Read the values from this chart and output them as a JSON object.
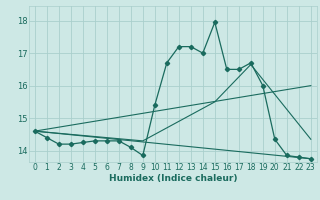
{
  "xlabel": "Humidex (Indice chaleur)",
  "xlim": [
    -0.5,
    23.5
  ],
  "ylim": [
    13.65,
    18.45
  ],
  "yticks": [
    14,
    15,
    16,
    17,
    18
  ],
  "xticks": [
    0,
    1,
    2,
    3,
    4,
    5,
    6,
    7,
    8,
    9,
    10,
    11,
    12,
    13,
    14,
    15,
    16,
    17,
    18,
    19,
    20,
    21,
    22,
    23
  ],
  "bg_color": "#cde8e5",
  "grid_color": "#aacfcc",
  "line_color": "#1a6b5e",
  "main_line": {
    "x": [
      0,
      1,
      2,
      3,
      4,
      5,
      6,
      7,
      8,
      9,
      10,
      11,
      12,
      13,
      14,
      15,
      16,
      17,
      18,
      19,
      20,
      21,
      22,
      23
    ],
    "y": [
      14.6,
      14.4,
      14.2,
      14.2,
      14.25,
      14.3,
      14.3,
      14.3,
      14.1,
      13.85,
      15.4,
      16.7,
      17.2,
      17.2,
      17.0,
      17.95,
      16.5,
      16.5,
      16.7,
      16.0,
      14.35,
      13.85,
      13.8,
      13.75
    ]
  },
  "extra_lines": [
    {
      "x": [
        0,
        23
      ],
      "y": [
        14.6,
        16.0
      ]
    },
    {
      "x": [
        0,
        23
      ],
      "y": [
        14.6,
        13.75
      ]
    },
    {
      "x": [
        0,
        9,
        15,
        18,
        23
      ],
      "y": [
        14.6,
        14.3,
        15.5,
        16.65,
        14.35
      ]
    }
  ]
}
